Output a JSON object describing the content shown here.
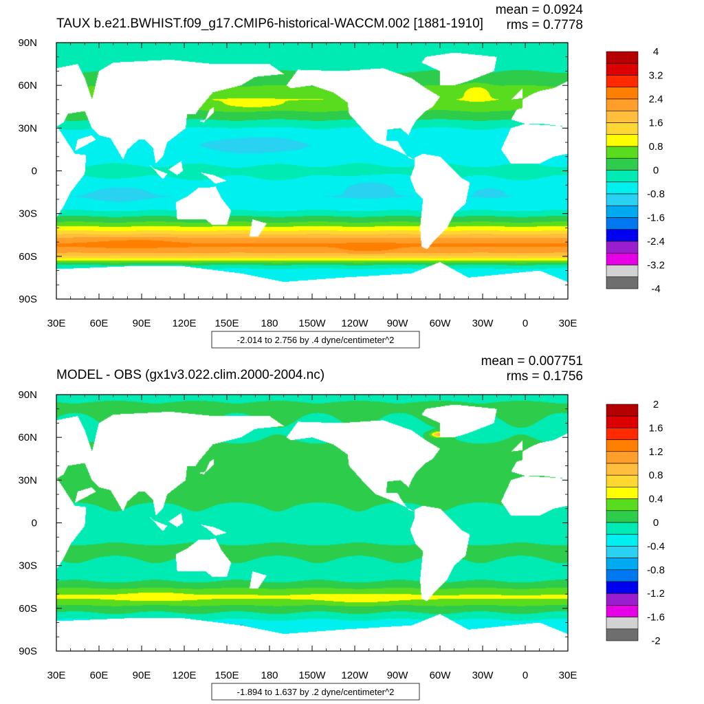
{
  "chart_data": [
    {
      "type": "heatmap",
      "title": "TAUX b.e21.BWHIST.f09_g17.CMIP6-historical-WACCM.002 [1881-1910]",
      "stats": {
        "mean": "mean = 0.0924",
        "rms": "rms = 0.7778"
      },
      "range_label": "-2.014 to 2.756 by .4 dyne/centimeter^2",
      "xlim": [
        30,
        390
      ],
      "ylim": [
        -90,
        90
      ],
      "x_ticks": [
        "30E",
        "60E",
        "90E",
        "120E",
        "150E",
        "180",
        "150W",
        "120W",
        "90W",
        "60W",
        "30W",
        "0",
        "30E"
      ],
      "y_ticks": [
        "90N",
        "60N",
        "30N",
        "0",
        "30S",
        "60S",
        "90S"
      ],
      "colorbar": {
        "labels": [
          "4",
          "3.2",
          "2.4",
          "1.6",
          "0.8",
          "0",
          "-0.8",
          "-1.6",
          "-2.4",
          "-3.2",
          "-4"
        ],
        "colors": [
          "#b40000",
          "#dc0000",
          "#ff2a00",
          "#ff7f00",
          "#ff9f2a",
          "#ffbe3c",
          "#ffd732",
          "#ffff00",
          "#5adc1e",
          "#2dcc4b",
          "#00ebb4",
          "#00f0ef",
          "#28d2f0",
          "#00aaf0",
          "#0078f0",
          "#0000f0",
          "#9b1ece",
          "#e600e6",
          "#d2d2d2",
          "#6e6e6e"
        ]
      },
      "zonal_profile": [
        {
          "lat": 90,
          "v": 0.0
        },
        {
          "lat": 75,
          "v": -0.2
        },
        {
          "lat": 62,
          "v": 0.3
        },
        {
          "lat": 50,
          "v": 0.8
        },
        {
          "lat": 40,
          "v": 0.3
        },
        {
          "lat": 30,
          "v": -0.4
        },
        {
          "lat": 18,
          "v": -0.7
        },
        {
          "lat": 8,
          "v": -0.5
        },
        {
          "lat": 0,
          "v": -0.3
        },
        {
          "lat": -10,
          "v": -0.5
        },
        {
          "lat": -18,
          "v": -0.8
        },
        {
          "lat": -28,
          "v": -0.4
        },
        {
          "lat": -36,
          "v": 0.4
        },
        {
          "lat": -42,
          "v": 1.2
        },
        {
          "lat": -47,
          "v": 2.0
        },
        {
          "lat": -52,
          "v": 2.5
        },
        {
          "lat": -57,
          "v": 2.1
        },
        {
          "lat": -62,
          "v": 1.1
        },
        {
          "lat": -66,
          "v": 0.0
        },
        {
          "lat": -70,
          "v": -0.6
        }
      ],
      "features": [
        {
          "lon": 170,
          "lat": 47,
          "rx": 22,
          "ry": 3,
          "v": 1.0
        },
        {
          "lon": 326,
          "lat": 55,
          "rx": 9,
          "ry": 5,
          "v": 1.1
        },
        {
          "lon": 170,
          "lat": 18,
          "rx": 38,
          "ry": 7,
          "v": -1.0
        },
        {
          "lon": 75,
          "lat": -16,
          "rx": 20,
          "ry": 6,
          "v": -1.0
        },
        {
          "lon": 250,
          "lat": -12,
          "rx": 20,
          "ry": 6,
          "v": -1.0
        },
        {
          "lon": 335,
          "lat": -15,
          "rx": 10,
          "ry": 3,
          "v": -1.0
        },
        {
          "lon": 85,
          "lat": -51,
          "rx": 30,
          "ry": 3,
          "v": 2.6
        },
        {
          "lon": 250,
          "lat": -54,
          "rx": 20,
          "ry": 3,
          "v": 2.6
        }
      ]
    },
    {
      "type": "heatmap",
      "title": "MODEL - OBS (gx1v3.022.clim.2000-2004.nc)",
      "stats": {
        "mean": "mean = 0.007751",
        "rms": "rms = 0.1756"
      },
      "range_label": "-1.894 to 1.637 by .2 dyne/centimeter^2",
      "xlim": [
        30,
        390
      ],
      "ylim": [
        -90,
        90
      ],
      "x_ticks": [
        "30E",
        "60E",
        "90E",
        "120E",
        "150E",
        "180",
        "150W",
        "120W",
        "90W",
        "60W",
        "30W",
        "0",
        "30E"
      ],
      "y_ticks": [
        "90N",
        "60N",
        "30N",
        "0",
        "30S",
        "60S",
        "90S"
      ],
      "colorbar": {
        "labels": [
          "2",
          "1.6",
          "1.2",
          "0.8",
          "0.4",
          "0",
          "-0.4",
          "-0.8",
          "-1.2",
          "-1.6",
          "-2"
        ],
        "colors": [
          "#b40000",
          "#dc0000",
          "#ff2a00",
          "#ff7f00",
          "#ff9f2a",
          "#ffbe3c",
          "#ffd732",
          "#ffff00",
          "#5adc1e",
          "#2dcc4b",
          "#00ebb4",
          "#00f0ef",
          "#28d2f0",
          "#00aaf0",
          "#0078f0",
          "#0000f0",
          "#9b1ece",
          "#e600e6",
          "#d2d2d2",
          "#6e6e6e"
        ]
      },
      "zonal_profile": [
        {
          "lat": 90,
          "v": -0.05
        },
        {
          "lat": 80,
          "v": 0.05
        },
        {
          "lat": 65,
          "v": -0.05
        },
        {
          "lat": 50,
          "v": 0.05
        },
        {
          "lat": 35,
          "v": 0.05
        },
        {
          "lat": 20,
          "v": 0.05
        },
        {
          "lat": 5,
          "v": -0.05
        },
        {
          "lat": -10,
          "v": -0.05
        },
        {
          "lat": -20,
          "v": 0.05
        },
        {
          "lat": -30,
          "v": -0.05
        },
        {
          "lat": -38,
          "v": -0.1
        },
        {
          "lat": -44,
          "v": 0.1
        },
        {
          "lat": -48,
          "v": 0.3
        },
        {
          "lat": -52,
          "v": 0.45
        },
        {
          "lat": -56,
          "v": 0.3
        },
        {
          "lat": -60,
          "v": 0.1
        },
        {
          "lat": -66,
          "v": -0.1
        },
        {
          "lat": -70,
          "v": -0.3
        }
      ],
      "features": [
        {
          "lon": 100,
          "lat": -52,
          "rx": 25,
          "ry": 3,
          "v": 0.5
        },
        {
          "lon": 245,
          "lat": -53,
          "rx": 30,
          "ry": 3,
          "v": 0.5
        },
        {
          "lon": 300,
          "lat": 62,
          "rx": 6,
          "ry": 2,
          "v": 1.0
        },
        {
          "lon": 160,
          "lat": -74,
          "rx": 2,
          "ry": 2,
          "v": -1.4
        }
      ]
    }
  ]
}
